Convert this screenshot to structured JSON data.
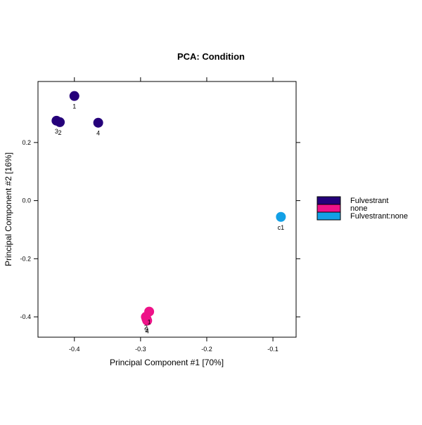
{
  "chart_data": {
    "type": "scatter",
    "title": "PCA: Condition",
    "xlabel": "Principal Component #1 [70%]",
    "ylabel": "Principal Component #2 [16%]",
    "xlim": [
      -0.455,
      -0.065
    ],
    "ylim": [
      -0.47,
      0.41
    ],
    "xticks": [
      -0.4,
      -0.3,
      -0.2,
      -0.1
    ],
    "xtick_labels": [
      "-0.4",
      "-0.3",
      "-0.2",
      "-0.1"
    ],
    "yticks": [
      -0.4,
      -0.2,
      0.0,
      0.2
    ],
    "ytick_labels": [
      "-0.4",
      "-0.2",
      "0.0",
      "0.2"
    ],
    "grid": false,
    "legend_position": "right",
    "series": [
      {
        "name": "Fulvestrant",
        "color": "#25007a",
        "points": [
          {
            "x": -0.4,
            "y": 0.36,
            "label": "1"
          },
          {
            "x": -0.427,
            "y": 0.275,
            "label": "3"
          },
          {
            "x": -0.422,
            "y": 0.27,
            "label": "2"
          },
          {
            "x": -0.364,
            "y": 0.268,
            "label": "4"
          }
        ]
      },
      {
        "name": "none",
        "color": "#ee1288",
        "points": [
          {
            "x": -0.287,
            "y": -0.382,
            "label": "1"
          },
          {
            "x": -0.292,
            "y": -0.4,
            "label": "2"
          },
          {
            "x": -0.291,
            "y": -0.407,
            "label": "3"
          },
          {
            "x": -0.29,
            "y": -0.413,
            "label": "4"
          }
        ]
      },
      {
        "name": "Fulvestrant:none",
        "color": "#13a0e6",
        "points": [
          {
            "x": -0.088,
            "y": -0.056,
            "label": "c1"
          }
        ]
      }
    ]
  }
}
